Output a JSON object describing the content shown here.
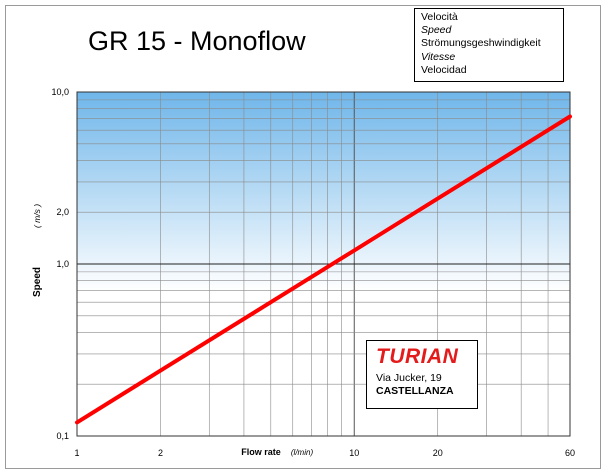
{
  "chart_data": {
    "type": "line",
    "title": "GR 15 - Monoflow",
    "ylabel": "Speed",
    "yunit": "( m/s )",
    "xlabel": "Flow rate",
    "xunit": "(l/min)",
    "xscale": "log",
    "yscale": "log",
    "xlim": [
      1,
      60
    ],
    "ylim": [
      0.1,
      10
    ],
    "x_tick_labels": [
      "1",
      "2",
      "10",
      "20",
      "60"
    ],
    "y_tick_labels": [
      "0,1",
      "1,0",
      "2,0",
      "10,0"
    ],
    "legend_lines": [
      "Velocità",
      "Speed",
      "Strömungsgeshwindigkeit",
      "Vitesse",
      "Velocidad"
    ],
    "series": [
      {
        "x": [
          1,
          2,
          5,
          10,
          20,
          60
        ],
        "y": [
          0.12,
          0.24,
          0.6,
          1.2,
          2.4,
          7.2
        ],
        "color": "#ff0000"
      }
    ],
    "grid": true,
    "background_gradient": [
      "#6fb6ea",
      "#ffffff"
    ]
  },
  "logo": {
    "brand": "TURIAN",
    "street": "Via Jucker, 19",
    "city": "CASTELLANZA",
    "brand_color": "#e31b1b"
  }
}
